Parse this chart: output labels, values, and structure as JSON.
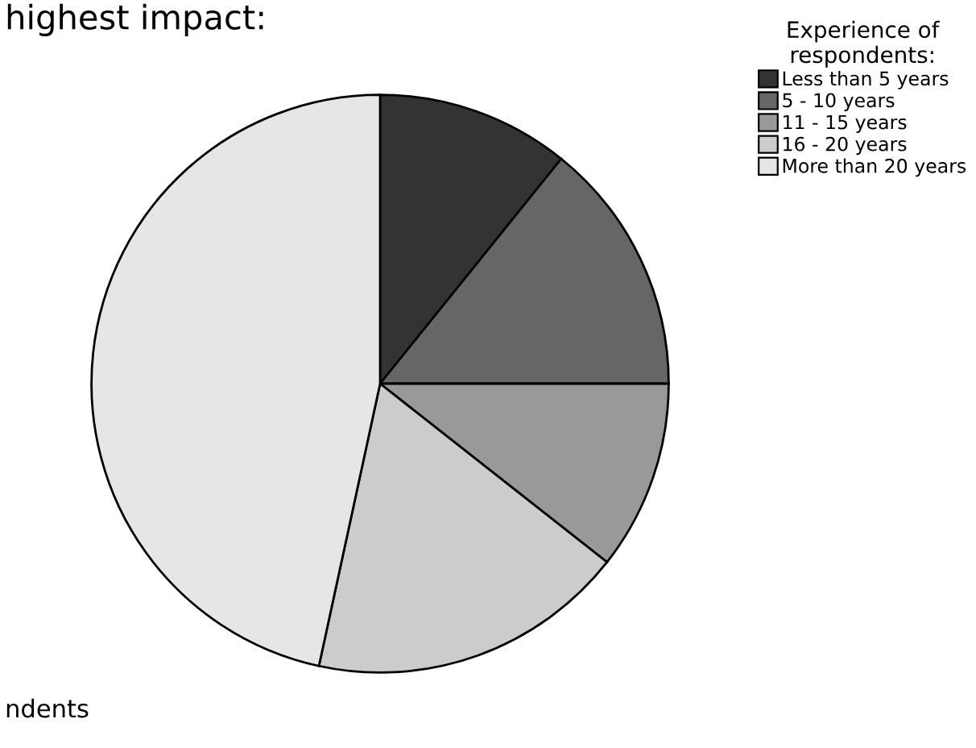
{
  "chart_data": {
    "type": "pie",
    "title": "highest impact:",
    "legend_title": "Experience of\nrespondents:",
    "annotations": [
      "ndents"
    ],
    "categories": [
      "Less than 5 years",
      "5 - 10 years",
      "11 - 15 years",
      "16 - 20 years",
      "More than 20 years"
    ],
    "values": [
      10.8,
      14.2,
      10.6,
      17.8,
      46.6
    ],
    "colors": [
      "#333333",
      "#666666",
      "#999999",
      "#cccccc",
      "#e6e6e6"
    ],
    "legend": "top right"
  }
}
